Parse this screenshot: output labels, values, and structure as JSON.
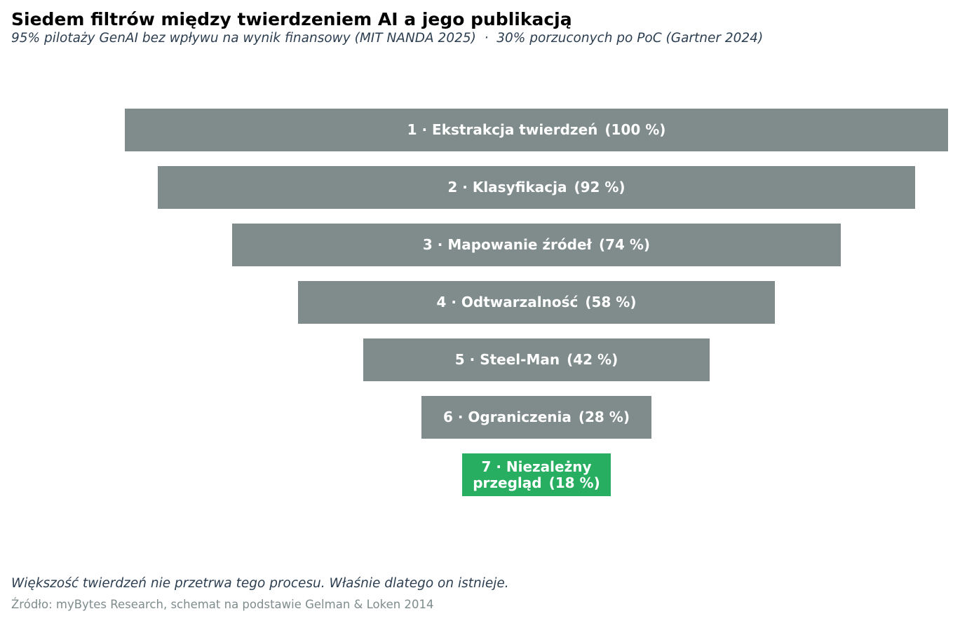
{
  "chart_data": {
    "type": "funnel",
    "title": "Siedem filtrów między twierdzeniem AI a jego publikacją",
    "subtitle": "95% pilotaży GenAI bez wpływu na wynik finansowy (MIT NANDA 2025)  ·  30% porzuconych po PoC (Gartner 2024)",
    "categories": [
      "1 · Ekstrakcja twierdzeń",
      "2 · Klasyfikacja",
      "3 · Mapowanie źródeł",
      "4 · Odtwarzalność",
      "5 · Steel-Man",
      "6 · Ograniczenia",
      "7 · Niezależny przegląd"
    ],
    "values": [
      100,
      92,
      74,
      58,
      42,
      28,
      18
    ],
    "value_labels": [
      "(100 %)",
      "(92 %)",
      "(74 %)",
      "(58 %)",
      "(42 %)",
      "(28 %)",
      "(18 %)"
    ],
    "colors": [
      "#7f8c8b",
      "#7f8c8b",
      "#7f8c8b",
      "#7f8c8b",
      "#7f8c8b",
      "#7f8c8b",
      "#27ae60"
    ],
    "note": "Większość twierdzeń nie przetrwa tego procesu. Właśnie dlatego on istnieje.",
    "source": "Źródło: myBytes Research, schemat na podstawie Gelman & Loken 2014"
  }
}
